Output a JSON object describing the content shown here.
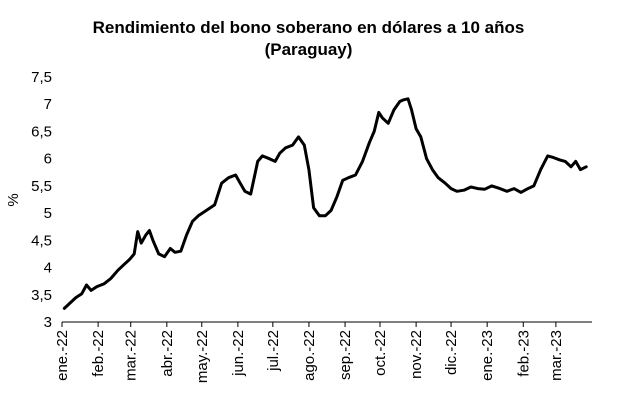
{
  "chart_data": {
    "type": "line",
    "title_line1": "Rendimiento del bono soberano en dólares a 10 años",
    "title_line2": "(Paraguay)",
    "xlabel": "",
    "ylabel": "%",
    "ylim": [
      3,
      7.5
    ],
    "y_ticks": [
      "3",
      "3,5",
      "4",
      "4,5",
      "5",
      "5,5",
      "6",
      "6,5",
      "7",
      "7,5"
    ],
    "y_tick_values": [
      3,
      3.5,
      4,
      4.5,
      5,
      5.5,
      6,
      6.5,
      7,
      7.5
    ],
    "x_ticks": [
      "ene.-22",
      "feb.-22",
      "mar.-22",
      "abr.-22",
      "may.-22",
      "jun.-22",
      "jul.-22",
      "ago.-22",
      "sep.-22",
      "oct.-22",
      "nov.-22",
      "dic.-22",
      "ene.-23",
      "feb.-23",
      "mar.-23"
    ],
    "grid": false,
    "legend": "none",
    "line_color": "#000000",
    "series": [
      {
        "x": [
          "2022-01-03",
          "2022-01-08",
          "2022-01-13",
          "2022-01-18",
          "2022-01-22",
          "2022-01-26",
          "2022-01-31",
          "2022-02-06",
          "2022-02-12",
          "2022-02-18",
          "2022-02-23",
          "2022-02-28",
          "2022-03-04",
          "2022-03-07",
          "2022-03-10",
          "2022-03-14",
          "2022-03-17",
          "2022-03-20",
          "2022-03-25",
          "2022-03-30",
          "2022-04-04",
          "2022-04-08",
          "2022-04-13",
          "2022-04-18",
          "2022-04-23",
          "2022-04-28",
          "2022-05-05",
          "2022-05-12",
          "2022-05-18",
          "2022-05-24",
          "2022-05-30",
          "2022-06-03",
          "2022-06-07",
          "2022-06-12",
          "2022-06-18",
          "2022-06-22",
          "2022-06-28",
          "2022-07-03",
          "2022-07-07",
          "2022-07-12",
          "2022-07-18",
          "2022-07-23",
          "2022-07-28",
          "2022-08-01",
          "2022-08-05",
          "2022-08-10",
          "2022-08-15",
          "2022-08-20",
          "2022-08-25",
          "2022-08-30",
          "2022-09-04",
          "2022-09-10",
          "2022-09-16",
          "2022-09-22",
          "2022-09-26",
          "2022-09-30",
          "2022-10-03",
          "2022-10-08",
          "2022-10-13",
          "2022-10-18",
          "2022-10-21",
          "2022-10-25",
          "2022-10-28",
          "2022-11-01",
          "2022-11-05",
          "2022-11-10",
          "2022-11-15",
          "2022-11-20",
          "2022-11-26",
          "2022-12-01",
          "2022-12-06",
          "2022-12-12",
          "2022-12-18",
          "2022-12-24",
          "2022-12-30",
          "2023-01-05",
          "2023-01-12",
          "2023-01-18",
          "2023-01-24",
          "2023-01-30",
          "2023-02-05",
          "2023-02-10",
          "2023-02-16",
          "2023-02-22",
          "2023-02-27",
          "2023-03-04",
          "2023-03-09",
          "2023-03-14",
          "2023-03-18",
          "2023-03-22",
          "2023-03-27"
        ],
        "y": [
          3.25,
          3.35,
          3.45,
          3.52,
          3.68,
          3.58,
          3.65,
          3.7,
          3.8,
          3.95,
          4.05,
          4.15,
          4.25,
          4.66,
          4.45,
          4.6,
          4.68,
          4.5,
          4.25,
          4.2,
          4.35,
          4.28,
          4.3,
          4.6,
          4.85,
          4.95,
          5.05,
          5.15,
          5.55,
          5.65,
          5.7,
          5.55,
          5.4,
          5.35,
          5.95,
          6.05,
          6.0,
          5.95,
          6.1,
          6.2,
          6.25,
          6.4,
          6.25,
          5.8,
          5.1,
          4.95,
          4.95,
          5.05,
          5.3,
          5.6,
          5.65,
          5.7,
          5.95,
          6.3,
          6.5,
          6.85,
          6.75,
          6.65,
          6.9,
          7.05,
          7.08,
          7.1,
          6.9,
          6.55,
          6.4,
          6.0,
          5.8,
          5.65,
          5.55,
          5.45,
          5.4,
          5.42,
          5.48,
          5.45,
          5.44,
          5.5,
          5.45,
          5.4,
          5.45,
          5.38,
          5.45,
          5.5,
          5.8,
          6.05,
          6.02,
          5.98,
          5.95,
          5.85,
          5.95,
          5.8,
          5.85
        ]
      }
    ]
  }
}
